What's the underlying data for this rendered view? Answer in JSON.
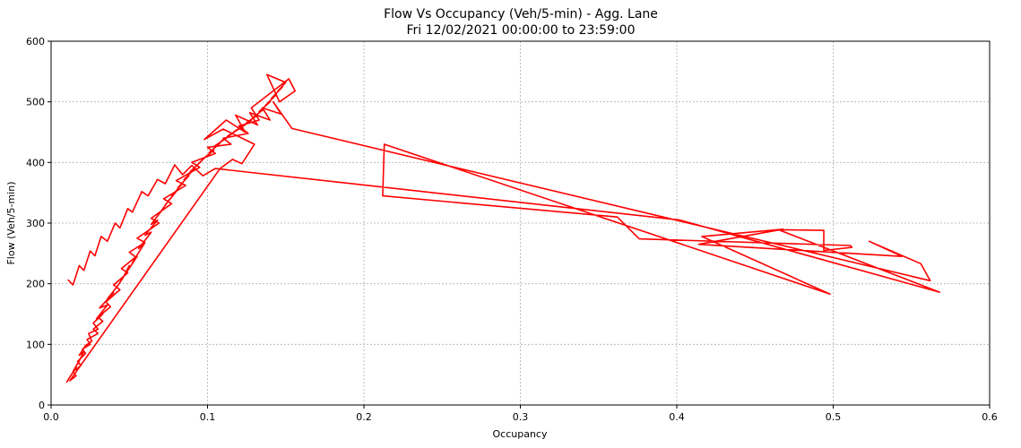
{
  "chart_data": {
    "type": "line",
    "title": "Flow Vs Occupancy (Veh/5-min) - Agg. Lane",
    "subtitle": "Fri 12/02/2021 00:00:00 to  23:59:00",
    "xlabel": "Occupancy",
    "ylabel": "Flow (Veh/5-min)",
    "xlim": [
      0,
      0.6
    ],
    "ylim": [
      0,
      600
    ],
    "xticks": [
      0,
      0.1,
      0.2,
      0.3,
      0.4,
      0.5,
      0.6
    ],
    "xtick_labels": [
      "0.0",
      "0.1",
      "0.2",
      "0.3",
      "0.4",
      "0.5",
      "0.6"
    ],
    "yticks": [
      0,
      100,
      200,
      300,
      400,
      500,
      600
    ],
    "ytick_labels": [
      "0",
      "100",
      "200",
      "300",
      "400",
      "500",
      "600"
    ],
    "grid": true,
    "series": [
      {
        "color": "#ff0000",
        "points": [
          [
            0.01,
            38
          ],
          [
            0.013,
            50
          ],
          [
            0.011,
            42
          ],
          [
            0.016,
            62
          ],
          [
            0.014,
            55
          ],
          [
            0.019,
            78
          ],
          [
            0.017,
            68
          ],
          [
            0.021,
            88
          ],
          [
            0.018,
            82
          ],
          [
            0.022,
            98
          ],
          [
            0.026,
            105
          ],
          [
            0.024,
            118
          ],
          [
            0.03,
            125
          ],
          [
            0.027,
            135
          ],
          [
            0.033,
            150
          ],
          [
            0.029,
            142
          ],
          [
            0.036,
            165
          ],
          [
            0.031,
            160
          ],
          [
            0.04,
            185
          ],
          [
            0.036,
            175
          ],
          [
            0.043,
            198
          ],
          [
            0.046,
            210
          ],
          [
            0.05,
            230
          ],
          [
            0.048,
            218
          ],
          [
            0.055,
            245
          ],
          [
            0.052,
            235
          ],
          [
            0.06,
            268
          ],
          [
            0.056,
            258
          ],
          [
            0.064,
            285
          ],
          [
            0.06,
            280
          ],
          [
            0.068,
            305
          ],
          [
            0.064,
            298
          ],
          [
            0.072,
            325
          ],
          [
            0.069,
            315
          ],
          [
            0.076,
            340
          ],
          [
            0.073,
            330
          ],
          [
            0.08,
            352
          ],
          [
            0.077,
            345
          ],
          [
            0.084,
            365
          ],
          [
            0.081,
            358
          ],
          [
            0.088,
            378
          ],
          [
            0.085,
            372
          ],
          [
            0.092,
            390
          ],
          [
            0.089,
            385
          ],
          [
            0.096,
            402
          ],
          [
            0.093,
            395
          ],
          [
            0.1,
            412
          ],
          [
            0.097,
            405
          ],
          [
            0.104,
            420
          ],
          [
            0.101,
            416
          ],
          [
            0.108,
            432
          ],
          [
            0.105,
            428
          ],
          [
            0.112,
            440
          ],
          [
            0.109,
            436
          ],
          [
            0.116,
            448
          ],
          [
            0.113,
            444
          ],
          [
            0.12,
            455
          ],
          [
            0.117,
            451
          ],
          [
            0.124,
            462
          ],
          [
            0.121,
            458
          ],
          [
            0.128,
            470
          ],
          [
            0.125,
            466
          ],
          [
            0.132,
            478
          ],
          [
            0.129,
            474
          ],
          [
            0.136,
            488
          ],
          [
            0.133,
            484
          ],
          [
            0.14,
            500
          ],
          [
            0.137,
            494
          ],
          [
            0.144,
            512
          ],
          [
            0.141,
            506
          ],
          [
            0.148,
            525
          ],
          [
            0.145,
            518
          ],
          [
            0.15,
            532
          ],
          [
            0.138,
            545
          ],
          [
            0.146,
            500
          ],
          [
            0.156,
            518
          ],
          [
            0.152,
            538
          ],
          [
            0.128,
            490
          ],
          [
            0.133,
            470
          ],
          [
            0.12,
            460
          ],
          [
            0.126,
            448
          ],
          [
            0.11,
            440
          ],
          [
            0.115,
            430
          ],
          [
            0.1,
            425
          ],
          [
            0.105,
            415
          ],
          [
            0.09,
            400
          ],
          [
            0.095,
            392
          ],
          [
            0.08,
            370
          ],
          [
            0.086,
            362
          ],
          [
            0.072,
            340
          ],
          [
            0.077,
            332
          ],
          [
            0.064,
            308
          ],
          [
            0.069,
            300
          ],
          [
            0.055,
            275
          ],
          [
            0.06,
            268
          ],
          [
            0.05,
            252
          ],
          [
            0.054,
            244
          ],
          [
            0.045,
            225
          ],
          [
            0.049,
            218
          ],
          [
            0.04,
            198
          ],
          [
            0.044,
            190
          ],
          [
            0.035,
            170
          ],
          [
            0.038,
            162
          ],
          [
            0.03,
            145
          ],
          [
            0.033,
            138
          ],
          [
            0.027,
            125
          ],
          [
            0.03,
            118
          ],
          [
            0.023,
            108
          ],
          [
            0.025,
            100
          ],
          [
            0.02,
            92
          ],
          [
            0.022,
            85
          ],
          [
            0.017,
            72
          ],
          [
            0.019,
            65
          ],
          [
            0.014,
            55
          ],
          [
            0.016,
            48
          ],
          [
            0.012,
            40
          ],
          [
            0.108,
            390
          ],
          [
            0.116,
            405
          ],
          [
            0.122,
            398
          ],
          [
            0.13,
            430
          ],
          [
            0.11,
            455
          ],
          [
            0.098,
            438
          ],
          [
            0.112,
            470
          ],
          [
            0.124,
            450
          ],
          [
            0.118,
            478
          ],
          [
            0.132,
            462
          ],
          [
            0.127,
            482
          ],
          [
            0.14,
            470
          ],
          [
            0.135,
            490
          ],
          [
            0.147,
            480
          ],
          [
            0.142,
            500
          ],
          [
            0.154,
            456
          ],
          [
            0.562,
            205
          ],
          [
            0.556,
            233
          ],
          [
            0.523,
            270
          ],
          [
            0.544,
            245
          ],
          [
            0.414,
            265
          ],
          [
            0.468,
            290
          ],
          [
            0.416,
            278
          ],
          [
            0.498,
            183
          ],
          [
            0.213,
            430
          ],
          [
            0.212,
            345
          ],
          [
            0.362,
            310
          ],
          [
            0.376,
            274
          ],
          [
            0.511,
            263
          ],
          [
            0.512,
            260
          ],
          [
            0.494,
            255
          ],
          [
            0.494,
            288
          ],
          [
            0.465,
            289
          ],
          [
            0.568,
            186
          ],
          [
            0.402,
            305
          ],
          [
            0.105,
            390
          ],
          [
            0.097,
            378
          ],
          [
            0.09,
            395
          ],
          [
            0.084,
            380
          ],
          [
            0.079,
            396
          ],
          [
            0.073,
            365
          ],
          [
            0.068,
            372
          ],
          [
            0.062,
            345
          ],
          [
            0.058,
            352
          ],
          [
            0.052,
            318
          ],
          [
            0.049,
            324
          ],
          [
            0.044,
            292
          ],
          [
            0.041,
            300
          ],
          [
            0.036,
            270
          ],
          [
            0.032,
            278
          ],
          [
            0.028,
            246
          ],
          [
            0.025,
            254
          ],
          [
            0.021,
            222
          ],
          [
            0.018,
            230
          ],
          [
            0.014,
            198
          ],
          [
            0.011,
            206
          ]
        ]
      }
    ]
  }
}
